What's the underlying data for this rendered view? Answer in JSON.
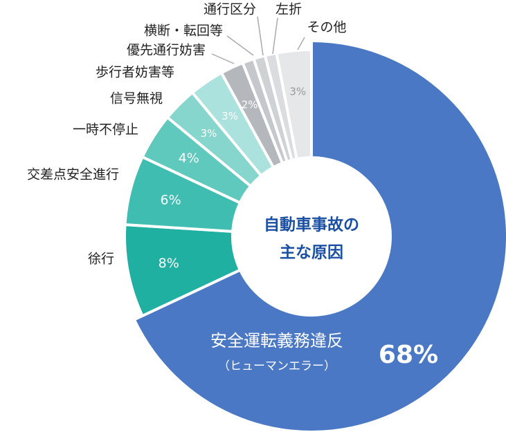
{
  "chart_data": {
    "type": "donut",
    "categories": [
      "安全運転義務違反",
      "徐行",
      "交差点安全進行",
      "一時不停止",
      "信号無視",
      "歩行者妨害等",
      "優先通行妨害",
      "横断・転回等",
      "通行区分",
      "左折",
      "その他"
    ],
    "values": [
      68,
      8,
      6,
      4,
      3,
      3,
      2,
      1,
      1,
      1,
      3
    ],
    "value_labels": [
      "68%",
      "8%",
      "6%",
      "4%",
      "3%",
      "3%",
      "2%",
      null,
      null,
      null,
      "3%"
    ],
    "colors": [
      "#4a78c4",
      "#1fb0a2",
      "#3fbdb1",
      "#60c9be",
      "#86d6ce",
      "#ace2dd",
      "#b4b7bc",
      "#c4c7cb",
      "#cfd2d5",
      "#dadcdf",
      "#e5e7e9"
    ],
    "annotations": [
      "（ヒューマンエラー）"
    ],
    "center_label": [
      "自動車事故の",
      "主な原因"
    ]
  }
}
